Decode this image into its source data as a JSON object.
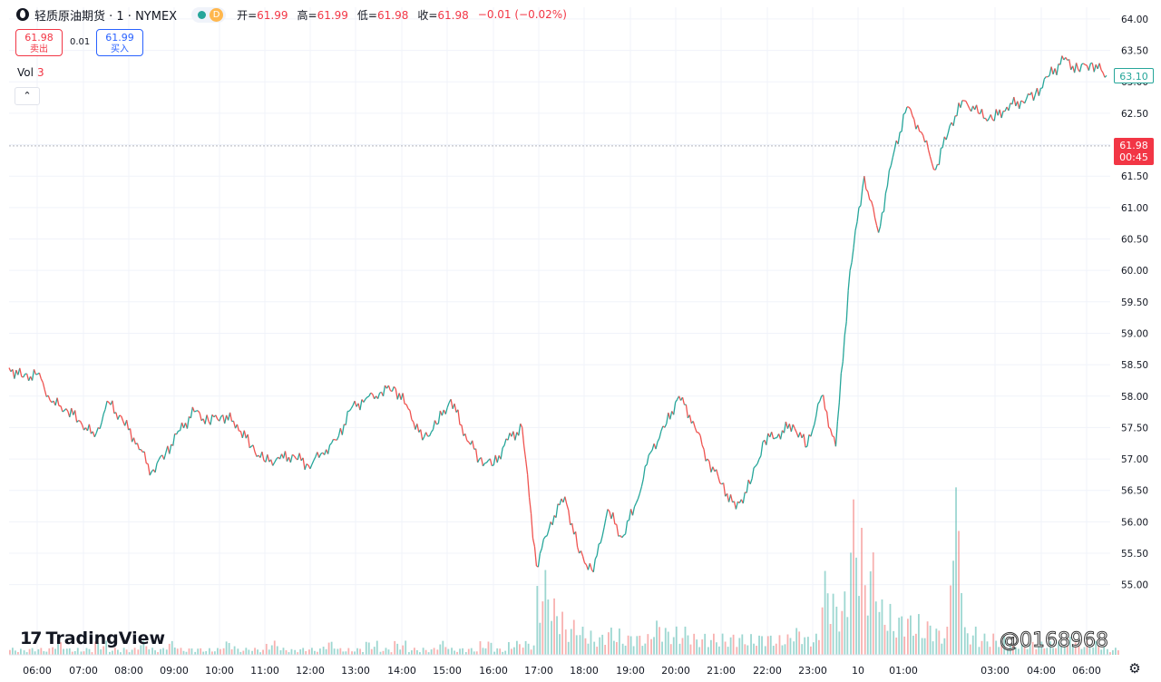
{
  "header": {
    "title": "轻质原油期货 · 1 · NYMEX",
    "session_badge": "D",
    "open_label": "开=",
    "open": "61.99",
    "high_label": "高=",
    "high": "61.99",
    "low_label": "低=",
    "low": "61.98",
    "close_label": "收=",
    "close": "61.98",
    "change": "−0.01 (−0.02%)"
  },
  "trade": {
    "sell_price": "61.98",
    "sell_label": "卖出",
    "spread": "0.01",
    "buy_price": "61.99",
    "buy_label": "买入"
  },
  "volume_label": "Vol",
  "volume_value": "3",
  "collapse_symbol": "⌃",
  "logo_text": "TradingView",
  "watermark": "@0168968",
  "badges": {
    "last_price": "63.10",
    "current_price": "61.98",
    "countdown": "00:45"
  },
  "colors": {
    "up": "#26a69a",
    "down": "#ef5350",
    "price_line": "#b2b5be",
    "current_badge": "#f23645"
  },
  "chart_data": {
    "type": "line",
    "series": [
      {
        "style": "candlestick-approx",
        "x": [
          "05:40",
          "06:00",
          "06:30",
          "07:00",
          "07:15",
          "07:40",
          "08:00",
          "08:10",
          "08:40",
          "09:00",
          "09:20",
          "09:40",
          "10:00",
          "10:30",
          "11:00",
          "11:30",
          "12:00",
          "12:20",
          "12:50",
          "13:00",
          "13:20",
          "13:50",
          "14:00",
          "14:15",
          "14:40",
          "15:00",
          "15:30",
          "15:40",
          "16:00",
          "16:20",
          "16:40",
          "17:00",
          "17:20",
          "17:40",
          "18:00",
          "18:20",
          "18:40",
          "18:55",
          "19:00",
          "19:10",
          "19:30",
          "19:50",
          "20:10",
          "20:30",
          "20:50",
          "21:10",
          "21:30",
          "21:40",
          "21:55",
          "22:15",
          "22:40",
          "23:00",
          "23:15",
          "23:40",
          "23:55",
          "00:15",
          "00:40",
          "00:55",
          "01:00",
          "01:05",
          "01:10",
          "01:30",
          "01:50",
          "02:00",
          "02:15",
          "02:30",
          "02:45",
          "03:00",
          "03:20",
          "03:40",
          "04:00",
          "04:20",
          "04:40",
          "05:00",
          "05:20",
          "05:40",
          "06:10",
          "06:30"
        ],
        "values": [
          58.45,
          58.3,
          58.35,
          57.9,
          57.8,
          57.6,
          57.35,
          57.9,
          57.6,
          57.25,
          56.8,
          57.1,
          57.45,
          57.75,
          57.6,
          57.7,
          57.55,
          57.2,
          56.95,
          57.0,
          57.05,
          56.9,
          57.1,
          57.3,
          57.8,
          57.95,
          58.05,
          58.15,
          57.8,
          57.3,
          57.55,
          57.95,
          57.4,
          57.0,
          56.9,
          57.3,
          57.5,
          55.3,
          56.0,
          56.4,
          55.5,
          55.2,
          56.2,
          55.75,
          56.3,
          57.1,
          57.5,
          58.0,
          57.6,
          57.0,
          56.6,
          56.2,
          56.6,
          57.3,
          57.4,
          57.55,
          57.2,
          58.0,
          57.2,
          60.0,
          61.5,
          60.6,
          61.8,
          62.6,
          62.2,
          61.6,
          62.3,
          62.7,
          62.5,
          62.4,
          62.6,
          62.7,
          62.8,
          63.1,
          63.35,
          63.2,
          63.3,
          63.1
        ]
      }
    ],
    "volume": [
      1,
      1,
      1,
      2,
      1,
      1,
      2,
      1,
      1,
      2,
      1,
      2,
      1,
      1,
      1,
      2,
      1,
      1,
      2,
      1,
      1,
      1,
      2,
      1,
      1,
      2,
      1,
      2,
      1,
      1,
      2,
      1,
      1,
      2,
      1,
      2,
      2,
      12,
      8,
      5,
      4,
      3,
      4,
      3,
      3,
      5,
      4,
      4,
      3,
      3,
      3,
      3,
      3,
      3,
      3,
      4,
      3,
      12,
      9,
      22,
      15,
      8,
      6,
      6,
      5,
      4,
      24,
      4,
      3,
      3,
      2,
      2,
      2,
      2,
      3,
      2,
      2,
      1
    ],
    "current_price": 61.98,
    "last_price": 63.1,
    "ylim": [
      54.75,
      64.1
    ],
    "y_ticks": [
      "64.00",
      "63.50",
      "63.00",
      "62.50",
      "62.00",
      "61.50",
      "61.00",
      "60.50",
      "60.00",
      "59.50",
      "59.00",
      "58.50",
      "58.00",
      "57.50",
      "57.00",
      "56.50",
      "56.00",
      "55.50",
      "55.00"
    ],
    "x_ticks": [
      "06:00",
      "07:00",
      "08:00",
      "09:00",
      "10:00",
      "11:00",
      "12:00",
      "13:00",
      "14:00",
      "15:00",
      "16:00",
      "17:00",
      "18:00",
      "19:00",
      "20:00",
      "21:00",
      "22:00",
      "23:00",
      "10",
      "01:00",
      "03:00",
      "04:00",
      "06:00"
    ],
    "grid": true
  }
}
